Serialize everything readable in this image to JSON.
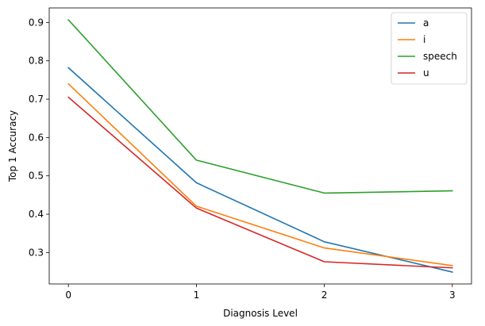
{
  "chart_data": {
    "type": "line",
    "title": "",
    "xlabel": "Diagnosis Level",
    "ylabel": "Top 1 Accuracy",
    "x": [
      0,
      1,
      2,
      3
    ],
    "x_ticks": [
      "0",
      "1",
      "2",
      "3"
    ],
    "y_ticks": [
      "0.3",
      "0.4",
      "0.5",
      "0.6",
      "0.7",
      "0.8",
      "0.9"
    ],
    "ylim": [
      0.218,
      0.938
    ],
    "xlim": [
      -0.15,
      3.15
    ],
    "grid": false,
    "legend_position": "top-right",
    "series": [
      {
        "name": "a",
        "color": "#1f77b4",
        "values": [
          0.782,
          0.482,
          0.328,
          0.249
        ]
      },
      {
        "name": "i",
        "color": "#ff7f0e",
        "values": [
          0.74,
          0.421,
          0.312,
          0.266
        ]
      },
      {
        "name": "speech",
        "color": "#2ca02c",
        "values": [
          0.907,
          0.541,
          0.455,
          0.461
        ]
      },
      {
        "name": "u",
        "color": "#d62728",
        "values": [
          0.705,
          0.416,
          0.276,
          0.26
        ]
      }
    ]
  }
}
